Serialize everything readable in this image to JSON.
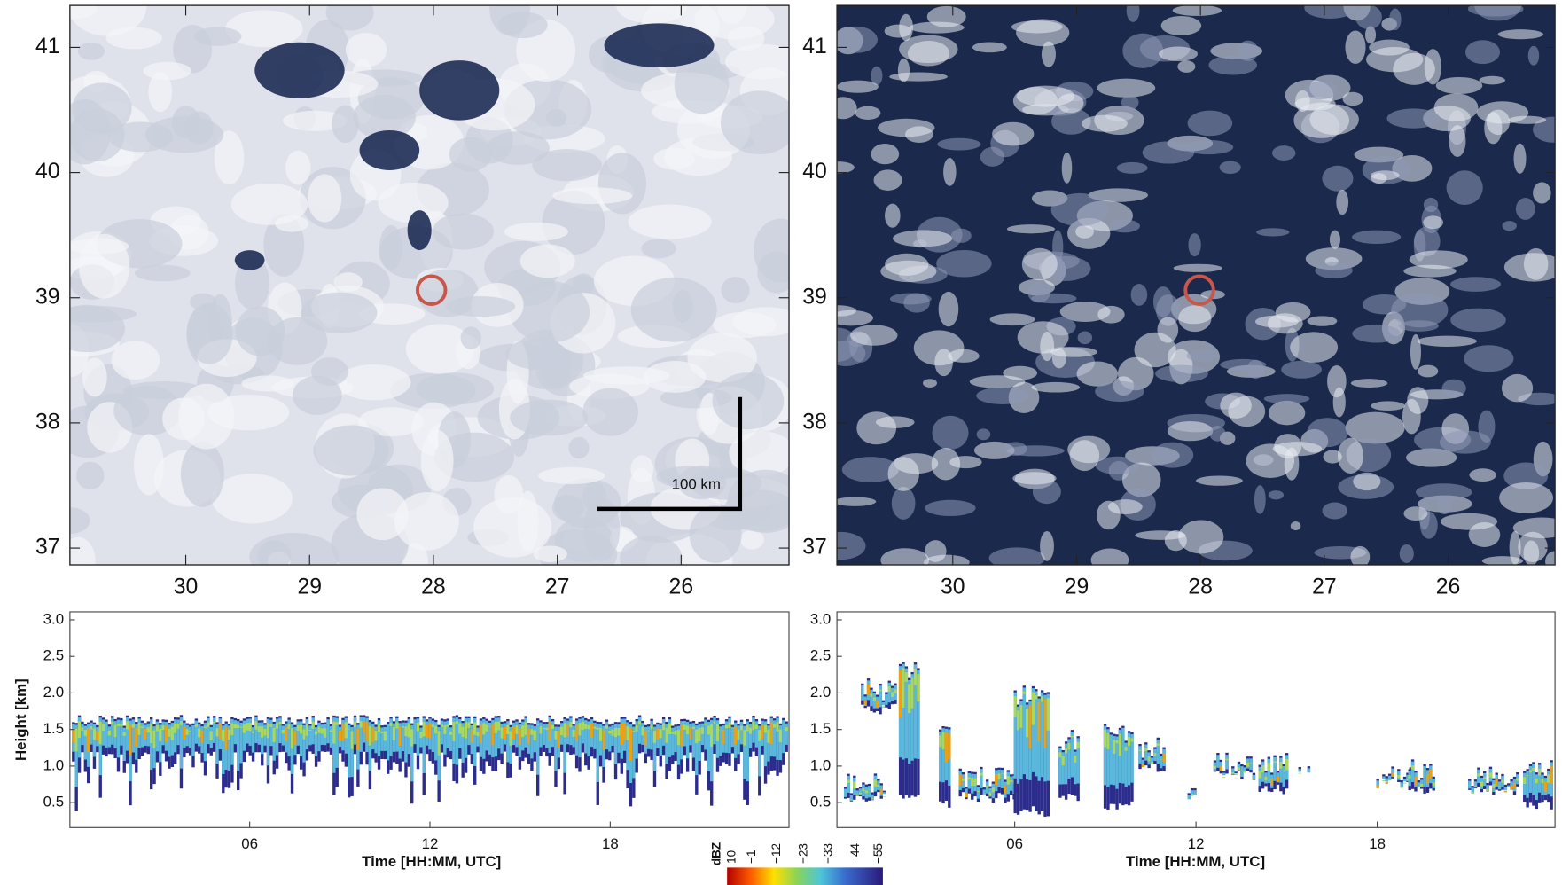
{
  "maps": [
    {
      "lat_ticks": [
        "41",
        "40",
        "39",
        "38",
        "37"
      ],
      "lon_ticks": [
        "30",
        "29",
        "28",
        "27",
        "26"
      ],
      "scale_bar": "100 km"
    },
    {
      "lat_ticks": [
        "41",
        "40",
        "39",
        "38",
        "37"
      ],
      "lon_ticks": [
        "30",
        "29",
        "28",
        "27",
        "26"
      ]
    }
  ],
  "profiles": [
    {
      "y_label": "Height [km]",
      "y_ticks": [
        "3.0",
        "2.5",
        "2.0",
        "1.5",
        "1.0",
        "0.5"
      ],
      "x_ticks": [
        "06",
        "12",
        "18"
      ],
      "x_label": "Time [HH:MM, UTC]"
    },
    {
      "y_ticks": [
        "3.0",
        "2.5",
        "2.0",
        "1.5",
        "1.0",
        "0.5"
      ],
      "x_ticks": [
        "06",
        "12",
        "18"
      ],
      "x_label": "Time [HH:MM, UTC]"
    }
  ],
  "colorbar": {
    "unit": "dBZ",
    "labels": [
      "10",
      "−1",
      "−12",
      "−23",
      "−33",
      "−44",
      "−55"
    ]
  }
}
